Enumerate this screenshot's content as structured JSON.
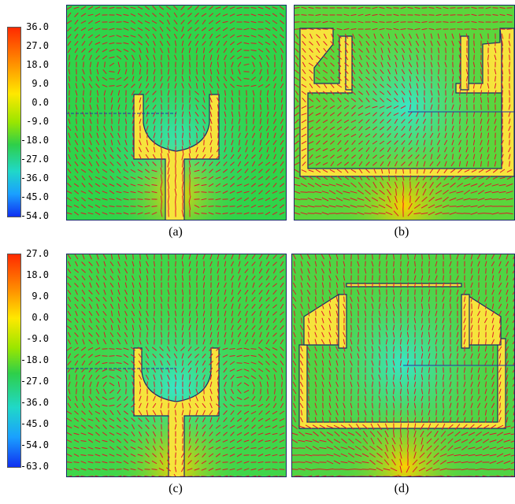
{
  "colorbars": [
    {
      "ticks": [
        "36.0",
        "27.0",
        "18.0",
        "9.0",
        "0.0",
        "-9.0",
        "-18.0",
        "-27.0",
        "-36.0",
        "-45.0",
        "-54.0"
      ]
    },
    {
      "ticks": [
        "27.0",
        "18.0",
        "9.0",
        "0.0",
        "-9.0",
        "-18.0",
        "-27.0",
        "-36.0",
        "-45.0",
        "-54.0",
        "-63.0"
      ]
    }
  ],
  "panels": [
    {
      "caption": "(a)",
      "field_color": "#2fd44a"
    },
    {
      "caption": "(b)",
      "field_color": "#5ad63c"
    },
    {
      "caption": "(c)",
      "field_color": "#3fd64a"
    },
    {
      "caption": "(d)",
      "field_color": "#4fd444"
    }
  ],
  "colors": {
    "arrow": "#e0142a",
    "copper": "#f6e43c",
    "hot": "#ff4a00",
    "cool": "#38e6c8"
  }
}
